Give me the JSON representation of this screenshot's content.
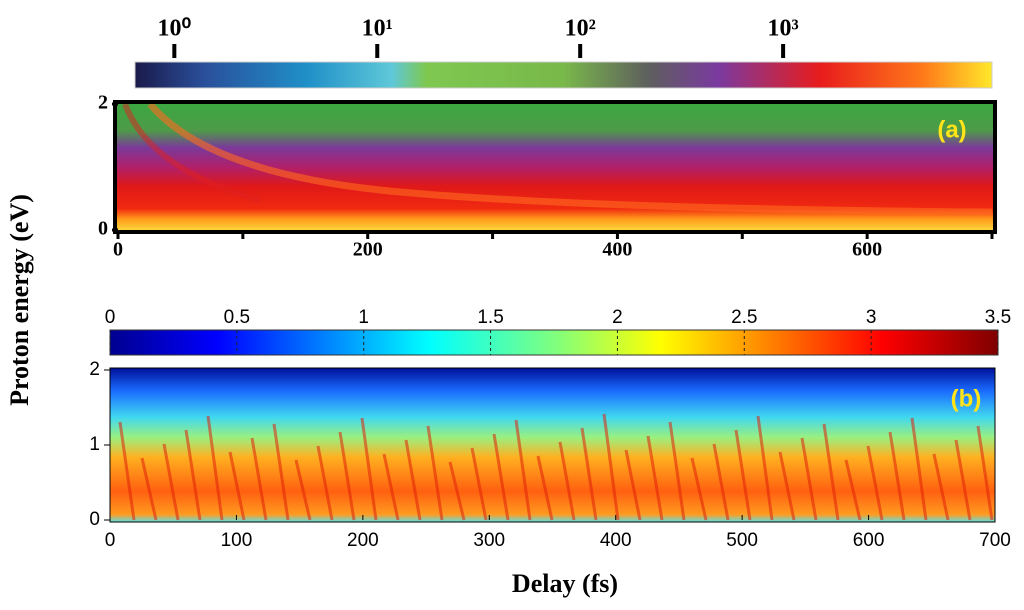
{
  "figure": {
    "ylabel": "Proton energy (eV)",
    "xlabel": "Delay (fs)"
  },
  "chart_data": [
    {
      "type": "heatmap",
      "panel_label": "(a)",
      "xlim": [
        0,
        700
      ],
      "xticks": [
        0,
        200,
        400,
        600
      ],
      "xminorticks": [
        100,
        300,
        500,
        700
      ],
      "ylim": [
        0,
        2
      ],
      "yticks": [
        0,
        2
      ],
      "colorbar": {
        "scale": "log",
        "lim": [
          0.64,
          10700
        ],
        "ticks": [
          {
            "value": 1,
            "label": "10⁰"
          },
          {
            "value": 10,
            "label": "10¹"
          },
          {
            "value": 100,
            "label": "10²"
          },
          {
            "value": 1000,
            "label": "10³"
          }
        ]
      }
    },
    {
      "type": "heatmap",
      "panel_label": "(b)",
      "xlim": [
        0,
        700
      ],
      "xticks": [
        0,
        100,
        200,
        300,
        400,
        500,
        600,
        700
      ],
      "ylim": [
        0,
        2
      ],
      "yticks": [
        0,
        1,
        2
      ],
      "colorbar": {
        "scale": "linear",
        "lim": [
          0,
          3.5
        ],
        "ticks": [
          0,
          0.5,
          1,
          1.5,
          2,
          2.5,
          3,
          3.5
        ]
      }
    }
  ]
}
